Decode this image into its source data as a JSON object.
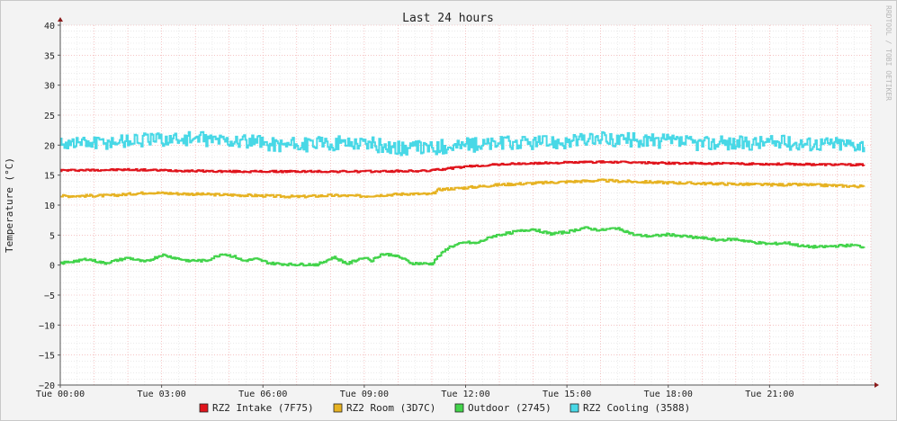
{
  "title": "Last 24 hours",
  "watermark": "RRDTOOL / TOBI OETIKER",
  "ylabel": "Temperature (°C)",
  "colors": {
    "intake": "#e0141c",
    "room": "#e6b222",
    "outdoor": "#42d34a",
    "cooling": "#48d8e6",
    "grid_minor": "#dedede",
    "grid_major": "#f0a0a0",
    "axis": "#8b1a1a"
  },
  "chart_data": {
    "type": "line",
    "title": "Last 24 hours",
    "xlabel": "",
    "ylabel": "Temperature (°C)",
    "ylim": [
      -20,
      40
    ],
    "xlim": [
      0,
      24
    ],
    "yticks": [
      40,
      35,
      30,
      25,
      20,
      15,
      10,
      5,
      0,
      -5,
      -10,
      -15,
      -20
    ],
    "xticks": [
      {
        "h": 0,
        "label": "Tue 00:00"
      },
      {
        "h": 3,
        "label": "Tue 03:00"
      },
      {
        "h": 6,
        "label": "Tue 06:00"
      },
      {
        "h": 9,
        "label": "Tue 09:00"
      },
      {
        "h": 12,
        "label": "Tue 12:00"
      },
      {
        "h": 15,
        "label": "Tue 15:00"
      },
      {
        "h": 18,
        "label": "Tue 18:00"
      },
      {
        "h": 21,
        "label": "Tue 21:00"
      }
    ],
    "grid": true,
    "legend_position": "bottom",
    "series": [
      {
        "name": "RZ2 Intake (7F75)",
        "color": "#e0141c",
        "noise": 0.15,
        "points": [
          [
            0,
            15.8
          ],
          [
            2,
            15.9
          ],
          [
            3,
            15.8
          ],
          [
            5,
            15.6
          ],
          [
            7,
            15.6
          ],
          [
            9,
            15.6
          ],
          [
            10.8,
            15.7
          ],
          [
            12,
            16.4
          ],
          [
            13,
            16.8
          ],
          [
            15,
            17.1
          ],
          [
            16,
            17.2
          ],
          [
            18,
            17.0
          ],
          [
            20,
            16.9
          ],
          [
            22,
            16.8
          ],
          [
            23.8,
            16.7
          ]
        ]
      },
      {
        "name": "RZ2 Room (3D7C)",
        "color": "#e6b222",
        "noise": 0.2,
        "points": [
          [
            0,
            11.5
          ],
          [
            1.5,
            11.6
          ],
          [
            2.6,
            12.1
          ],
          [
            3.5,
            11.9
          ],
          [
            5,
            11.7
          ],
          [
            7,
            11.4
          ],
          [
            8,
            11.6
          ],
          [
            9,
            11.5
          ],
          [
            10.3,
            11.9
          ],
          [
            11,
            11.8
          ],
          [
            11.2,
            12.6
          ],
          [
            12,
            12.9
          ],
          [
            13,
            13.4
          ],
          [
            15,
            13.9
          ],
          [
            16,
            14.1
          ],
          [
            17,
            13.9
          ],
          [
            19,
            13.6
          ],
          [
            21,
            13.4
          ],
          [
            22,
            13.4
          ],
          [
            23.8,
            13.1
          ]
        ]
      },
      {
        "name": "Outdoor (2745)",
        "color": "#42d34a",
        "noise": 0.2,
        "points": [
          [
            0,
            0.3
          ],
          [
            0.8,
            1.0
          ],
          [
            1.3,
            0.3
          ],
          [
            2,
            1.2
          ],
          [
            2.5,
            0.5
          ],
          [
            3,
            1.7
          ],
          [
            3.7,
            0.8
          ],
          [
            4.3,
            0.7
          ],
          [
            4.8,
            1.9
          ],
          [
            5.2,
            1.3
          ],
          [
            5.4,
            0.7
          ],
          [
            5.8,
            1.0
          ],
          [
            6.2,
            0.3
          ],
          [
            6.8,
            0.1
          ],
          [
            7.6,
            0.1
          ],
          [
            8.1,
            1.3
          ],
          [
            8.5,
            0.2
          ],
          [
            9.0,
            1.4
          ],
          [
            9.2,
            0.7
          ],
          [
            9.5,
            1.8
          ],
          [
            9.9,
            1.7
          ],
          [
            10.4,
            0.3
          ],
          [
            11.0,
            0.2
          ],
          [
            11.1,
            1.0
          ],
          [
            11.5,
            3.0
          ],
          [
            12,
            3.8
          ],
          [
            12.3,
            3.6
          ],
          [
            12.8,
            4.8
          ],
          [
            13.4,
            5.5
          ],
          [
            14,
            6.0
          ],
          [
            14.5,
            5.2
          ],
          [
            15,
            5.5
          ],
          [
            15.5,
            6.2
          ],
          [
            16,
            5.8
          ],
          [
            16.5,
            6.2
          ],
          [
            17,
            5.0
          ],
          [
            17.5,
            4.8
          ],
          [
            18,
            5.1
          ],
          [
            18.5,
            4.8
          ],
          [
            19,
            4.5
          ],
          [
            19.5,
            4.2
          ],
          [
            20,
            4.3
          ],
          [
            20.5,
            3.8
          ],
          [
            21,
            3.5
          ],
          [
            21.5,
            3.7
          ],
          [
            22,
            3.1
          ],
          [
            22.5,
            3.0
          ],
          [
            23,
            3.2
          ],
          [
            23.5,
            3.3
          ],
          [
            23.8,
            3.0
          ]
        ]
      },
      {
        "name": "RZ2 Cooling (3588)",
        "color": "#48d8e6",
        "noise": 1.2,
        "points": [
          [
            0,
            20.5
          ],
          [
            1,
            20.4
          ],
          [
            2,
            20.8
          ],
          [
            3,
            21.0
          ],
          [
            4,
            21.1
          ],
          [
            5,
            20.8
          ],
          [
            6,
            20.3
          ],
          [
            7,
            20.0
          ],
          [
            8,
            20.3
          ],
          [
            9,
            20.4
          ],
          [
            9.5,
            19.8
          ],
          [
            10,
            19.5
          ],
          [
            11,
            19.6
          ],
          [
            12,
            20.0
          ],
          [
            13,
            20.3
          ],
          [
            14,
            20.4
          ],
          [
            15,
            20.6
          ],
          [
            16,
            21.0
          ],
          [
            17,
            20.8
          ],
          [
            18,
            20.6
          ],
          [
            19,
            20.3
          ],
          [
            20,
            20.3
          ],
          [
            21,
            20.5
          ],
          [
            22,
            20.3
          ],
          [
            23,
            20.3
          ],
          [
            23.8,
            20.1
          ]
        ]
      }
    ]
  },
  "legend": [
    {
      "label": "RZ2 Intake (7F75)",
      "color": "#e0141c"
    },
    {
      "label": "RZ2 Room (3D7C)",
      "color": "#e6b222"
    },
    {
      "label": "Outdoor (2745)",
      "color": "#42d34a"
    },
    {
      "label": "RZ2 Cooling (3588)",
      "color": "#48d8e6"
    }
  ]
}
